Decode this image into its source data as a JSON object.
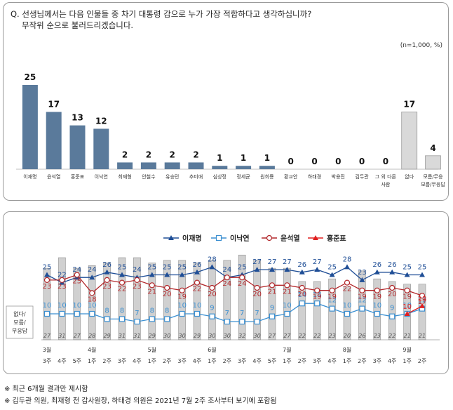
{
  "question": {
    "line1": "Q. 선생님께서는 다음 인물들 중 차기 대통령 감으로 누가 가장 적합하다고 생각하십니까?",
    "line2": "무작위 순으로 불러드리겠습니다."
  },
  "sample_note": "(n=1,000, %)",
  "colors": {
    "bar_candidate": "#5a7a9b",
    "bar_other": "#d9d9d9",
    "lee_jm": "#1f4e96",
    "lee_ny": "#3b8fd1",
    "yoon": "#b2272a",
    "hong": "#e02020",
    "none_bar": "#d0d0d0"
  },
  "chart_data": [
    {
      "type": "bar",
      "categories": [
        "이재명",
        "윤석열",
        "홍준표",
        "이낙연",
        "최재형",
        "안철수",
        "유승민",
        "추미애",
        "심상정",
        "정세균",
        "원희룡",
        "황교안",
        "하태경",
        "박용진",
        "김두관",
        "그 외 다른 사람",
        "없다",
        "모름/무응답"
      ],
      "values": [
        25,
        17,
        13,
        12,
        2,
        2,
        2,
        2,
        1,
        1,
        1,
        0,
        0,
        0,
        0,
        0,
        17,
        4
      ],
      "ylim": [
        0,
        30
      ]
    },
    {
      "type": "line",
      "legend": [
        "이재명",
        "이낙연",
        "윤석열",
        "홍준표"
      ],
      "legend_placement": "top-right",
      "x": [
        "3주",
        "4주",
        "5주",
        "1주",
        "2주",
        "3주",
        "4주",
        "1주",
        "2주",
        "3주",
        "4주",
        "1주",
        "2주",
        "3주",
        "4주",
        "5주",
        "1주",
        "2주",
        "3주",
        "4주",
        "1주",
        "2주",
        "3주",
        "4주",
        "1주",
        "2주"
      ],
      "months": [
        {
          "label": "3월",
          "index": 0
        },
        {
          "label": "4월",
          "index": 3
        },
        {
          "label": "5월",
          "index": 7
        },
        {
          "label": "6월",
          "index": 11
        },
        {
          "label": "7월",
          "index": 16
        },
        {
          "label": "8월",
          "index": 20
        },
        {
          "label": "9월",
          "index": 24
        }
      ],
      "series": [
        {
          "name": "이재명",
          "values": [
            25,
            22,
            24,
            24,
            26,
            25,
            24,
            25,
            25,
            25,
            26,
            28,
            24,
            25,
            27,
            27,
            27,
            26,
            27,
            25,
            28,
            23,
            26,
            26,
            25,
            25
          ]
        },
        {
          "name": "이낙연",
          "values": [
            10,
            10,
            10,
            10,
            8,
            8,
            7,
            8,
            8,
            10,
            10,
            9,
            7,
            7,
            7,
            9,
            10,
            14,
            14,
            12,
            10,
            12,
            10,
            9,
            10,
            12
          ]
        },
        {
          "name": "윤석열",
          "values": [
            23,
            23,
            25,
            18,
            23,
            22,
            23,
            21,
            20,
            19,
            22,
            20,
            24,
            24,
            20,
            21,
            21,
            20,
            19,
            19,
            22,
            19,
            19,
            20,
            19,
            17
          ]
        },
        {
          "name": "홍준표",
          "values": [
            null,
            null,
            null,
            null,
            null,
            null,
            null,
            null,
            null,
            null,
            null,
            null,
            null,
            null,
            null,
            null,
            null,
            null,
            null,
            null,
            null,
            null,
            null,
            null,
            10,
            13
          ]
        }
      ],
      "none_label": "없다/모름/무응답",
      "none_values": [
        27,
        31,
        27,
        28,
        29,
        31,
        31,
        29,
        30,
        30,
        29,
        30,
        30,
        32,
        30,
        27,
        27,
        22,
        22,
        23,
        20,
        26,
        23,
        22,
        21,
        21
      ],
      "ylim": [
        0,
        35
      ]
    }
  ],
  "footnotes": [
    "※ 최근 6개월 결과만 제시함",
    "※ 김두관 의원, 최재형 전 감사원장, 하태경 의원은 2021년 7월 2주 조사부터 보기에 포함됨"
  ]
}
